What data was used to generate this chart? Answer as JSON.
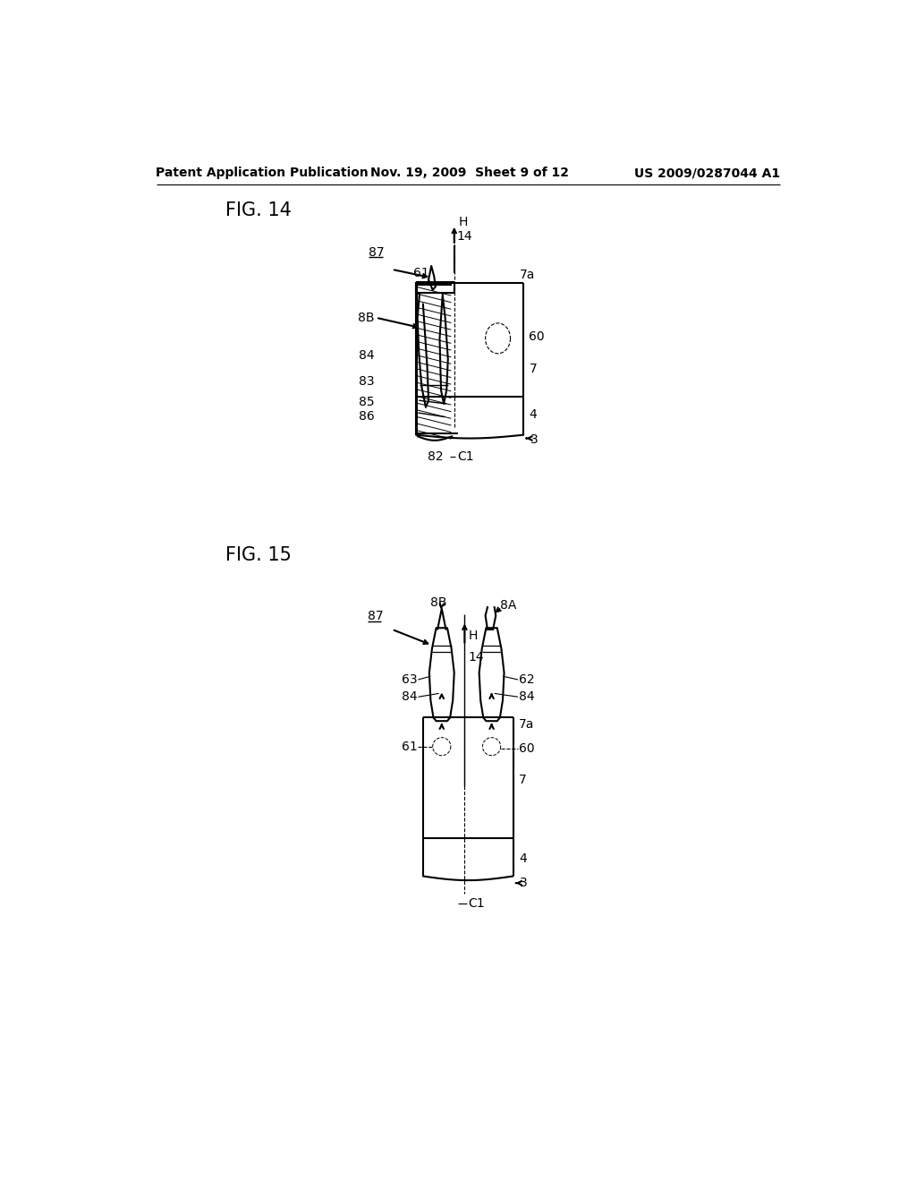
{
  "bg_color": "#ffffff",
  "header_left": "Patent Application Publication",
  "header_mid": "Nov. 19, 2009  Sheet 9 of 12",
  "header_right": "US 2009/0287044 A1",
  "fig14_label": "FIG. 14",
  "fig15_label": "FIG. 15",
  "line_color": "#000000",
  "line_width": 1.5,
  "text_fontsize": 10,
  "header_fontsize": 10
}
